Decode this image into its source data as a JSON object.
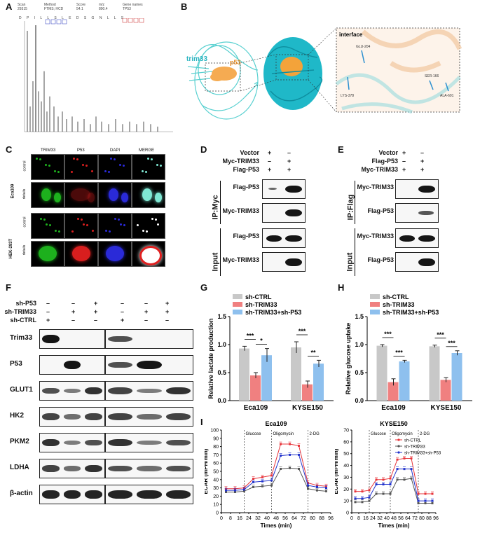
{
  "panels": {
    "A": "A",
    "B": "B",
    "C": "C",
    "D": "D",
    "E": "E",
    "F": "F",
    "G": "G",
    "H": "H",
    "I": "I"
  },
  "panelA": {
    "meta_headers": [
      "Scan",
      "Method",
      "Score",
      "m/z",
      "Gene names"
    ],
    "meta_values": [
      "29315",
      "FTMS; HCD",
      "54.1",
      "890.4",
      "TP53"
    ],
    "sequence": "D P I L L S L E D S G N L L S"
  },
  "panelB": {
    "protein1": "trim33",
    "protein2": "p53",
    "interface_title": "interface",
    "residues": [
      "GLU-204",
      "LYS-378",
      "SER-166",
      "ALA-691"
    ]
  },
  "panelC": {
    "columns": [
      "TRIM33",
      "P53",
      "DAPI",
      "MERGE"
    ],
    "cell_lines": [
      "Eca109",
      "HEK-293T"
    ],
    "row_labels": [
      "control",
      "details",
      "control",
      "details"
    ]
  },
  "panelD": {
    "conditions": [
      {
        "label": "Vector",
        "signs": [
          "+",
          "–"
        ]
      },
      {
        "label": "Myc-TRIM33",
        "signs": [
          "–",
          "+"
        ]
      },
      {
        "label": "Flag-P53",
        "signs": [
          "+",
          "+"
        ]
      }
    ],
    "ip_label": "IP:Myc",
    "input_label": "Input",
    "rows": [
      "Flag-P53",
      "Myc-TRIM33",
      "Flag-P53",
      "Myc-TRIM33"
    ]
  },
  "panelE": {
    "conditions": [
      {
        "label": "Vector",
        "signs": [
          "+",
          "–"
        ]
      },
      {
        "label": "Flag-P53",
        "signs": [
          "–",
          "+"
        ]
      },
      {
        "label": "Myc-TRIM33",
        "signs": [
          "+",
          "+"
        ]
      }
    ],
    "ip_label": "IP:Flag",
    "input_label": "Input",
    "rows": [
      "Myc-TRIM33",
      "Flag-P53",
      "Myc-TRIM33",
      "Flag-P53"
    ]
  },
  "panelF": {
    "conditions": [
      {
        "label": "sh-P53",
        "signs": [
          "–",
          "–",
          "+",
          "–",
          "–",
          "+"
        ]
      },
      {
        "label": "sh-TRIM33",
        "signs": [
          "–",
          "+",
          "+",
          "–",
          "+",
          "+"
        ]
      },
      {
        "label": "sh-CTRL",
        "signs": [
          "+",
          "–",
          "–",
          "+",
          "–",
          "–"
        ]
      }
    ],
    "rows": [
      "Trim33",
      "P53",
      "GLUT1",
      "HK2",
      "PKM2",
      "LDHA",
      "β-actin"
    ]
  },
  "chart_data": [
    {
      "type": "bar",
      "panel": "G",
      "categories": [
        "Eca109",
        "KYSE150"
      ],
      "series": [
        {
          "name": "sh-CTRL",
          "values": [
            0.93,
            0.95
          ],
          "errors": [
            0.04,
            0.1
          ],
          "color": "#c8c8c8"
        },
        {
          "name": "sh-TRIM33",
          "values": [
            0.45,
            0.29
          ],
          "errors": [
            0.05,
            0.06
          ],
          "color": "#f08080"
        },
        {
          "name": "sh-TRIM33+sh-P53",
          "values": [
            0.81,
            0.66
          ],
          "errors": [
            0.12,
            0.06
          ],
          "color": "#8ec0ee"
        }
      ],
      "ylabel": "Relative lactate production",
      "ylim": [
        0,
        1.5
      ],
      "yticks": [
        "0.0",
        "0.5",
        "1.0",
        "1.5"
      ],
      "significance": [
        {
          "cat": 0,
          "from": 0,
          "to": 1,
          "text": "***"
        },
        {
          "cat": 0,
          "from": 1,
          "to": 2,
          "text": "*"
        },
        {
          "cat": 1,
          "from": 0,
          "to": 1,
          "text": "***"
        },
        {
          "cat": 1,
          "from": 1,
          "to": 2,
          "text": "**"
        }
      ]
    },
    {
      "type": "bar",
      "panel": "H",
      "categories": [
        "Eca109",
        "KYSE150"
      ],
      "series": [
        {
          "name": "sh-CTRL",
          "values": [
            0.98,
            0.97
          ],
          "errors": [
            0.02,
            0.02
          ],
          "color": "#c8c8c8"
        },
        {
          "name": "sh-TRIM33",
          "values": [
            0.33,
            0.37
          ],
          "errors": [
            0.06,
            0.04
          ],
          "color": "#f08080"
        },
        {
          "name": "sh-TRIM33+sh-P53",
          "values": [
            0.7,
            0.85
          ],
          "errors": [
            0.02,
            0.04
          ],
          "color": "#8ec0ee"
        }
      ],
      "ylabel": "Relative glucose uptake",
      "ylim": [
        0,
        1.5
      ],
      "yticks": [
        "0.0",
        "0.5",
        "1.0",
        "1.5"
      ],
      "significance": [
        {
          "cat": 0,
          "from": 0,
          "to": 1,
          "text": "***"
        },
        {
          "cat": 0,
          "from": 1,
          "to": 2,
          "text": "***"
        },
        {
          "cat": 1,
          "from": 0,
          "to": 1,
          "text": "***"
        },
        {
          "cat": 1,
          "from": 1,
          "to": 2,
          "text": "***"
        }
      ]
    },
    {
      "type": "line",
      "panel": "I",
      "title": "Eca109",
      "x": [
        0,
        8,
        16,
        24,
        32,
        40,
        48,
        56,
        64,
        72,
        80,
        88,
        96
      ],
      "xticks": [
        "0",
        "8",
        "16",
        "24",
        "32",
        "40",
        "48",
        "56",
        "64",
        "72",
        "80",
        "88",
        "96"
      ],
      "xlabel": "Times (min)",
      "ylabel": "ECAR (mPH/min)",
      "ylim": [
        0,
        100
      ],
      "yticks": [
        "0",
        "10",
        "20",
        "30",
        "40",
        "50",
        "60",
        "70",
        "80",
        "90",
        "100"
      ],
      "markers": [
        {
          "x": 20,
          "label": "Glucose"
        },
        {
          "x": 44,
          "label": "Oligomycin"
        },
        {
          "x": 76,
          "label": "2-DG"
        }
      ],
      "series": [
        {
          "name": "sh-CTRL",
          "color": "#e8353b",
          "points": [
            [
              4,
              29
            ],
            [
              12,
              29
            ],
            [
              20,
              30
            ],
            [
              28,
              41
            ],
            [
              36,
              43
            ],
            [
              44,
              45
            ],
            [
              52,
              83
            ],
            [
              60,
              83
            ],
            [
              68,
              81
            ],
            [
              76,
              36
            ],
            [
              84,
              33
            ],
            [
              92,
              32
            ]
          ]
        },
        {
          "name": "sh-TRIM33",
          "color": "#555555",
          "points": [
            [
              4,
              25
            ],
            [
              12,
              25
            ],
            [
              20,
              26
            ],
            [
              28,
              31
            ],
            [
              36,
              32
            ],
            [
              44,
              33
            ],
            [
              52,
              53
            ],
            [
              60,
              54
            ],
            [
              68,
              53
            ],
            [
              76,
              29
            ],
            [
              84,
              27
            ],
            [
              92,
              26
            ]
          ]
        },
        {
          "name": "sh-TRIM33+sh-P53",
          "color": "#2233cc",
          "points": [
            [
              4,
              27
            ],
            [
              12,
              27
            ],
            [
              20,
              28
            ],
            [
              28,
              37
            ],
            [
              36,
              38
            ],
            [
              44,
              39
            ],
            [
              52,
              69
            ],
            [
              60,
              70
            ],
            [
              68,
              70
            ],
            [
              76,
              33
            ],
            [
              84,
              31
            ],
            [
              92,
              30
            ]
          ]
        }
      ]
    },
    {
      "type": "line",
      "panel": "I",
      "title": "KYSE150",
      "x": [
        0,
        8,
        16,
        24,
        32,
        40,
        48,
        56,
        64,
        72,
        80,
        88,
        96
      ],
      "xticks": [
        "0",
        "8",
        "16",
        "24",
        "32",
        "40",
        "48",
        "56",
        "64",
        "72",
        "80",
        "88",
        "96"
      ],
      "xlabel": "Times (min)",
      "ylabel": "ECAR (mPH/min)",
      "ylim": [
        0,
        70
      ],
      "yticks": [
        "0",
        "10",
        "20",
        "30",
        "40",
        "50",
        "60",
        "70"
      ],
      "markers": [
        {
          "x": 20,
          "label": "Glucose"
        },
        {
          "x": 44,
          "label": "Oligomycin"
        },
        {
          "x": 76,
          "label": "2-DG"
        }
      ],
      "legend": [
        "sh-CTRL",
        "sh-TRIM33",
        "sh-TRIM33+sh-P53"
      ],
      "series": [
        {
          "name": "sh-CTRL",
          "color": "#e8353b",
          "points": [
            [
              4,
              18
            ],
            [
              12,
              18
            ],
            [
              20,
              19
            ],
            [
              28,
              28
            ],
            [
              36,
              28
            ],
            [
              44,
              29
            ],
            [
              52,
              45
            ],
            [
              60,
              46
            ],
            [
              68,
              46
            ],
            [
              76,
              16
            ],
            [
              84,
              16
            ],
            [
              92,
              16
            ]
          ]
        },
        {
          "name": "sh-TRIM33",
          "color": "#555555",
          "points": [
            [
              4,
              9
            ],
            [
              12,
              9
            ],
            [
              20,
              10
            ],
            [
              28,
              16
            ],
            [
              36,
              16
            ],
            [
              44,
              16
            ],
            [
              52,
              28
            ],
            [
              60,
              28
            ],
            [
              68,
              29
            ],
            [
              76,
              8
            ],
            [
              84,
              8
            ],
            [
              92,
              8
            ]
          ]
        },
        {
          "name": "sh-TRIM33+sh-P53",
          "color": "#2233cc",
          "points": [
            [
              4,
              12
            ],
            [
              12,
              12
            ],
            [
              20,
              13
            ],
            [
              28,
              24
            ],
            [
              36,
              24
            ],
            [
              44,
              24
            ],
            [
              52,
              37
            ],
            [
              60,
              37
            ],
            [
              68,
              37
            ],
            [
              76,
              10
            ],
            [
              84,
              10
            ],
            [
              92,
              10
            ]
          ]
        }
      ]
    }
  ]
}
